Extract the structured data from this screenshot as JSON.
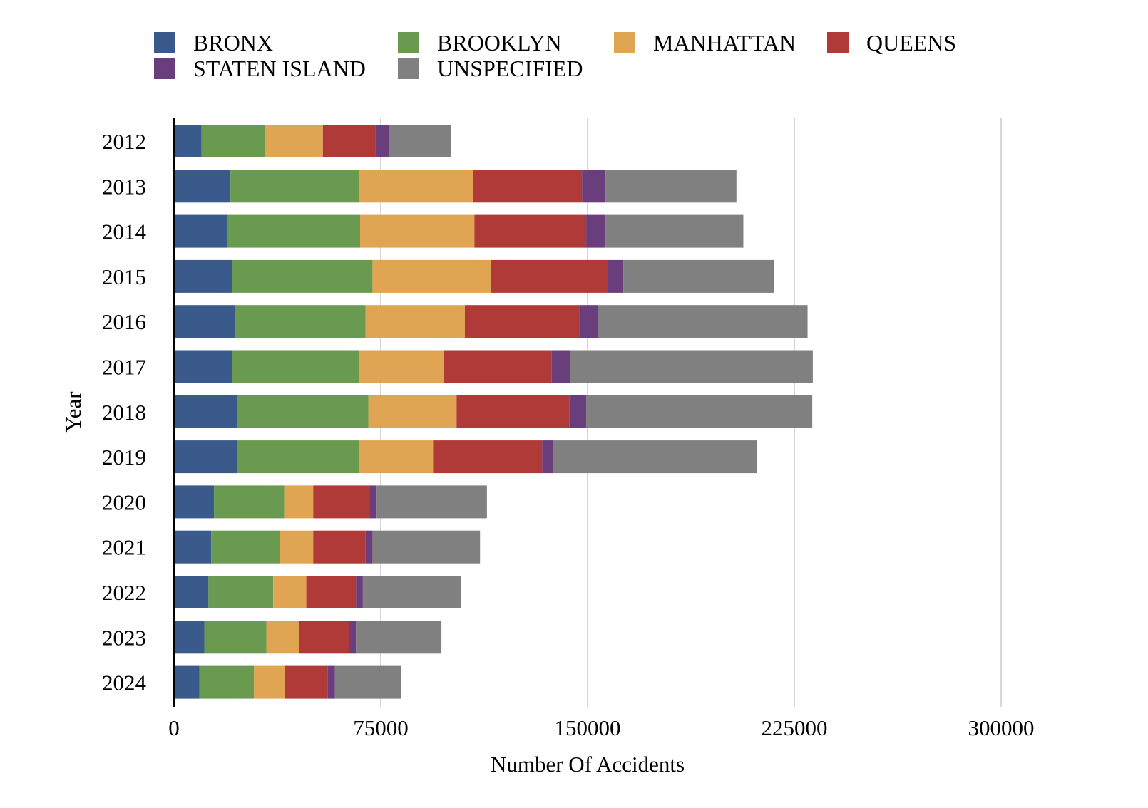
{
  "chart_data": {
    "type": "bar",
    "orientation": "horizontal",
    "stacked": true,
    "xlabel": "Number Of Accidents",
    "ylabel": "Year",
    "xlim": [
      0,
      300000
    ],
    "xticks": [
      0,
      75000,
      150000,
      225000,
      300000
    ],
    "grid": "vertical",
    "legend_position": "top",
    "categories": [
      "2012",
      "2013",
      "2014",
      "2015",
      "2016",
      "2017",
      "2018",
      "2019",
      "2020",
      "2021",
      "2022",
      "2023",
      "2024"
    ],
    "series": [
      {
        "name": "BRONX",
        "color": "#3a5a8c",
        "values": [
          10000,
          20500,
          19500,
          21000,
          22000,
          21000,
          23000,
          23000,
          14500,
          13500,
          12500,
          11000,
          9200
        ]
      },
      {
        "name": "BROOKLYN",
        "color": "#6a9a50",
        "values": [
          23000,
          46500,
          48000,
          51000,
          47500,
          46000,
          47500,
          44000,
          25500,
          25000,
          23500,
          22500,
          19800
        ]
      },
      {
        "name": "MANHATTAN",
        "color": "#e0a552",
        "values": [
          21000,
          41500,
          41500,
          43000,
          36000,
          31000,
          32000,
          27000,
          10500,
          12000,
          12000,
          12000,
          11200
        ]
      },
      {
        "name": "QUEENS",
        "color": "#b03a38",
        "values": [
          19000,
          39500,
          40500,
          42000,
          41500,
          39000,
          41000,
          39500,
          20500,
          19000,
          18000,
          18000,
          15600
        ]
      },
      {
        "name": "STATEN ISLAND",
        "color": "#6a3d7c",
        "values": [
          5000,
          8500,
          7000,
          6000,
          6800,
          6700,
          6000,
          4000,
          2500,
          2500,
          2500,
          2500,
          2600
        ]
      },
      {
        "name": "UNSPECIFIED",
        "color": "#808080",
        "values": [
          22500,
          47500,
          50000,
          54500,
          76000,
          88000,
          82000,
          74000,
          40000,
          39000,
          35500,
          31000,
          24000
        ]
      }
    ]
  }
}
